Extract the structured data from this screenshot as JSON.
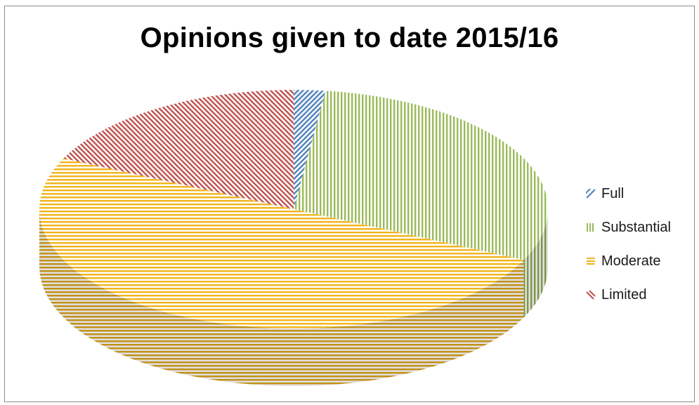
{
  "chart_data": {
    "type": "pie",
    "title": "Opinions given to date 2015/16",
    "categories": [
      "Full",
      "Substantial",
      "Moderate",
      "Limited"
    ],
    "values": [
      2,
      30,
      50,
      18
    ],
    "colors": [
      "#4f81bd",
      "#9bbb59",
      "#f2b41a",
      "#c0504d"
    ],
    "patterns": [
      "diagonal-up",
      "vertical",
      "horizontal",
      "diagonal-down"
    ],
    "legend_position": "right",
    "style": "3d"
  }
}
